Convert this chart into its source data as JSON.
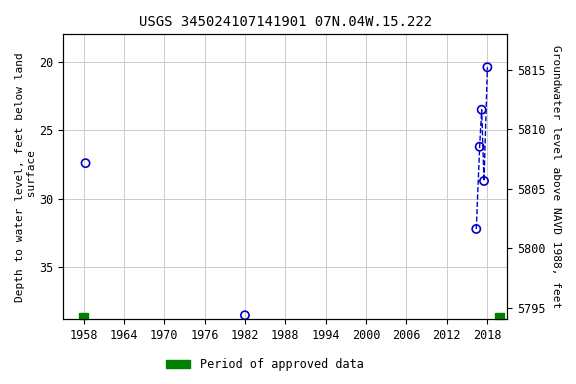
{
  "title": "USGS 345024107141901 07N.04W.15.222",
  "ylabel_left": "Depth to water level, feet below land\n surface",
  "ylabel_right": "Groundwater level above NAVD 1988, feet",
  "xlim": [
    1955,
    2021
  ],
  "ylim_left": [
    38.8,
    18.0
  ],
  "ylim_right": [
    5794.0,
    5818.0
  ],
  "xticks": [
    1958,
    1964,
    1970,
    1976,
    1982,
    1988,
    1994,
    2000,
    2006,
    2012,
    2018
  ],
  "yticks_left": [
    20,
    25,
    30,
    35
  ],
  "yticks_right": [
    5795,
    5800,
    5805,
    5810,
    5815
  ],
  "isolated_points": [
    {
      "year": 1958.3,
      "depth": 27.4
    },
    {
      "year": 1982.0,
      "depth": 38.5
    }
  ],
  "connected_points": [
    {
      "year": 2016.4,
      "depth": 32.2
    },
    {
      "year": 2016.9,
      "depth": 26.2
    },
    {
      "year": 2017.2,
      "depth": 23.5
    },
    {
      "year": 2017.55,
      "depth": 28.7
    },
    {
      "year": 2018.05,
      "depth": 20.4
    }
  ],
  "approved_periods": [
    {
      "start": 1957.3,
      "end": 1958.7
    },
    {
      "start": 2019.2,
      "end": 2020.5
    }
  ],
  "point_color": "#0000cc",
  "line_color": "#0000cc",
  "approved_color": "#008000",
  "background_color": "#ffffff",
  "grid_color": "#cccccc",
  "font_family": "monospace",
  "title_fontsize": 10,
  "axis_label_fontsize": 8,
  "tick_fontsize": 8.5
}
